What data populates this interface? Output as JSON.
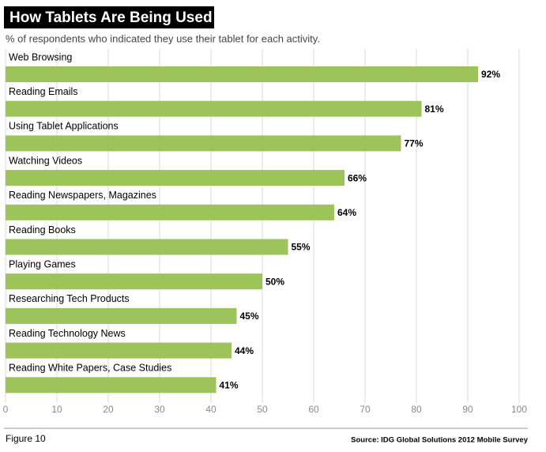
{
  "chart_data": {
    "type": "bar",
    "orientation": "horizontal",
    "title": "How Tablets Are Being Used",
    "subtitle": "% of respondents who indicated they use their tablet for each activity.",
    "categories": [
      "Web Browsing",
      "Reading Emails",
      "Using Tablet Applications",
      "Watching Videos",
      "Reading Newspapers, Magazines",
      "Reading Books",
      "Playing Games",
      "Researching Tech Products",
      "Reading Technology News",
      "Reading White Papers, Case Studies"
    ],
    "values": [
      92,
      81,
      77,
      66,
      64,
      55,
      50,
      45,
      44,
      41
    ],
    "value_labels": [
      "92%",
      "81%",
      "77%",
      "66%",
      "64%",
      "55%",
      "50%",
      "45%",
      "44%",
      "41%"
    ],
    "color": "#9dc35b",
    "xlim": [
      0,
      100
    ],
    "xticks": [
      0,
      10,
      20,
      30,
      40,
      50,
      60,
      70,
      80,
      90,
      100
    ],
    "grid": true,
    "figure_label": "Figure 10",
    "source": "Source: IDG Global Solutions 2012 Mobile Survey"
  }
}
